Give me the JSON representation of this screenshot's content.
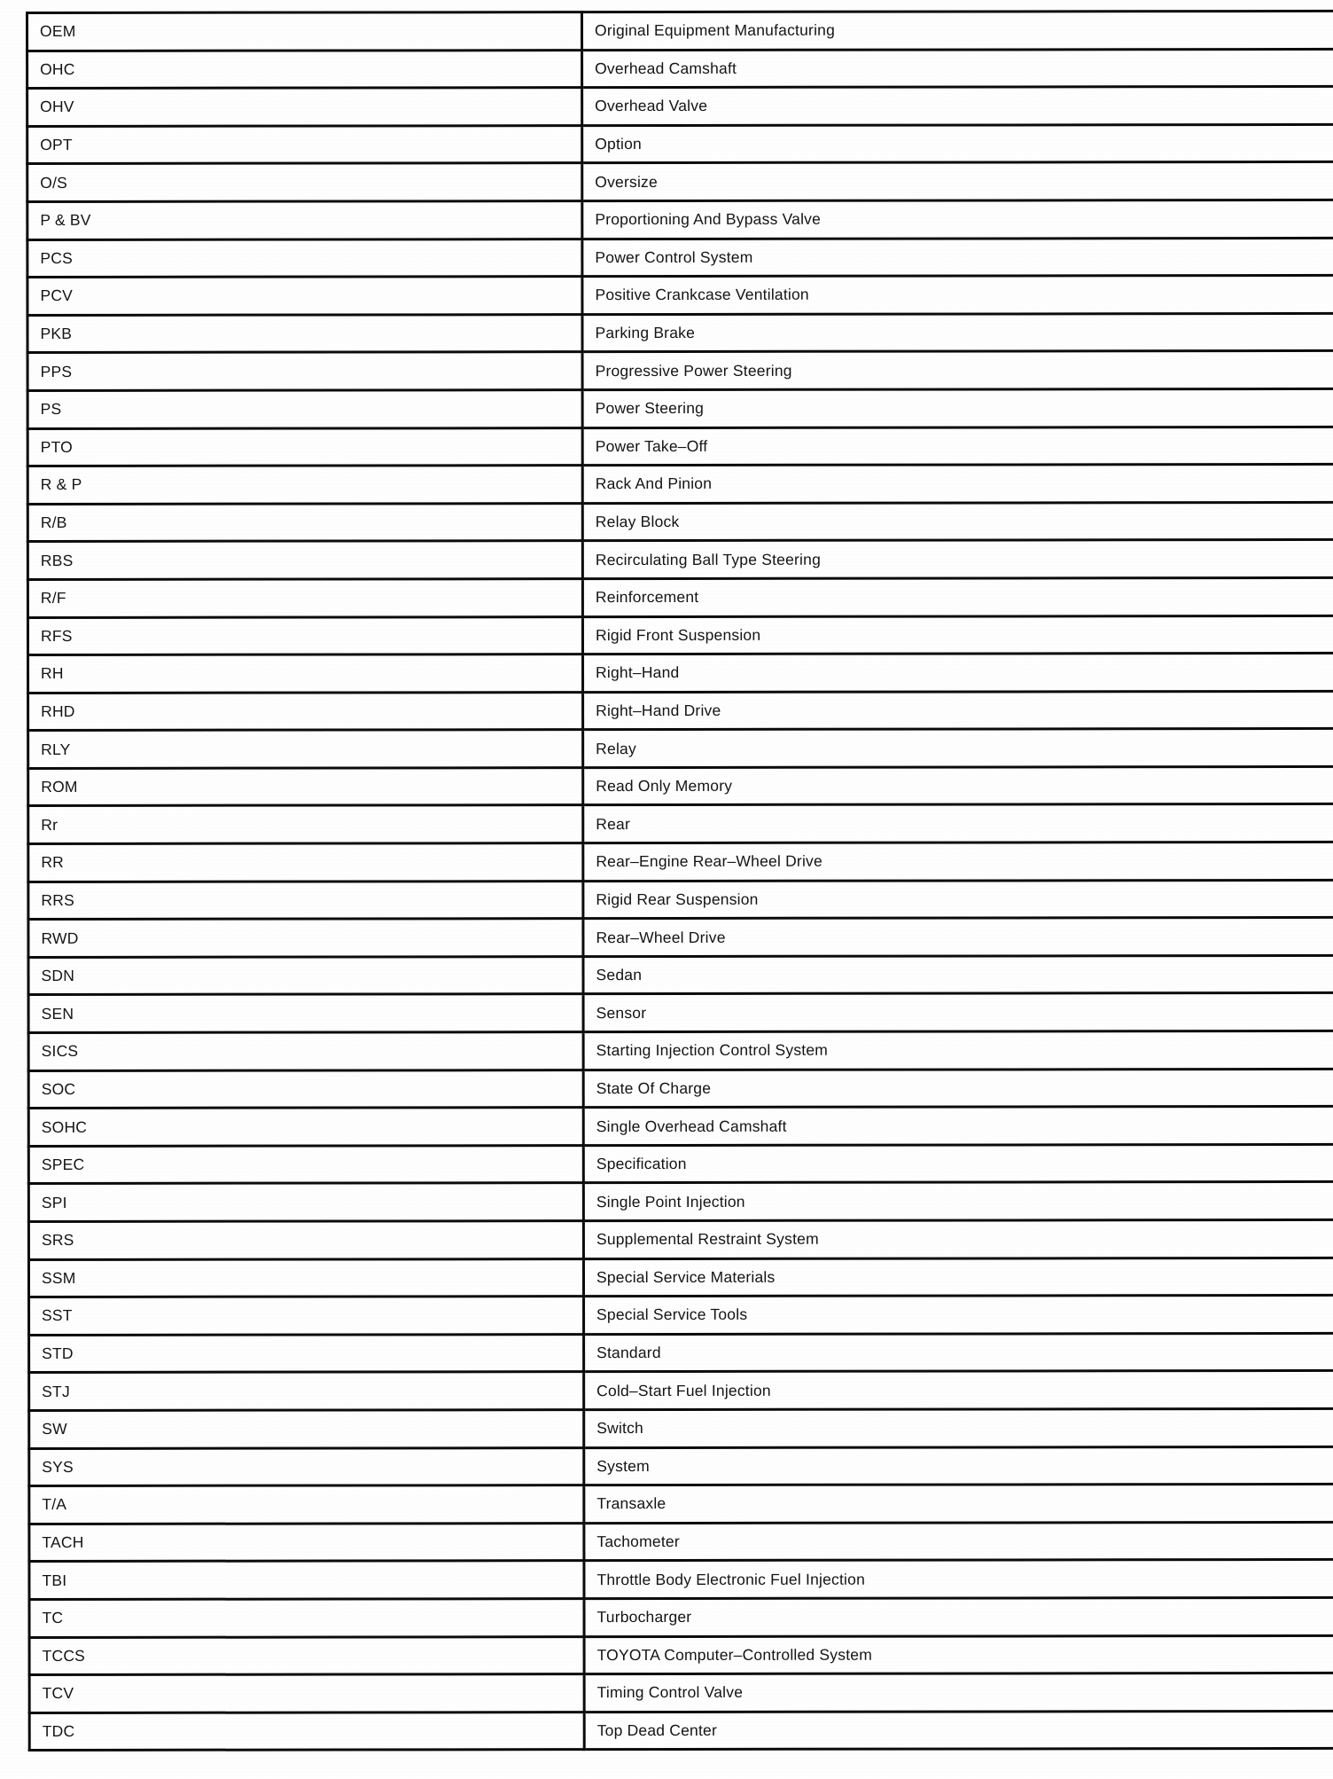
{
  "table": {
    "rows": [
      {
        "abbr": "OEM",
        "meaning": "Original Equipment Manufacturing"
      },
      {
        "abbr": "OHC",
        "meaning": "Overhead Camshaft"
      },
      {
        "abbr": "OHV",
        "meaning": "Overhead Valve"
      },
      {
        "abbr": "OPT",
        "meaning": "Option"
      },
      {
        "abbr": "O/S",
        "meaning": "Oversize"
      },
      {
        "abbr": "P & BV",
        "meaning": "Proportioning And Bypass Valve"
      },
      {
        "abbr": "PCS",
        "meaning": "Power Control System"
      },
      {
        "abbr": "PCV",
        "meaning": "Positive Crankcase Ventilation"
      },
      {
        "abbr": "PKB",
        "meaning": "Parking Brake"
      },
      {
        "abbr": "PPS",
        "meaning": "Progressive Power Steering"
      },
      {
        "abbr": "PS",
        "meaning": "Power Steering"
      },
      {
        "abbr": "PTO",
        "meaning": "Power Take–Off"
      },
      {
        "abbr": "R & P",
        "meaning": "Rack And Pinion"
      },
      {
        "abbr": "R/B",
        "meaning": "Relay Block"
      },
      {
        "abbr": "RBS",
        "meaning": "Recirculating Ball Type Steering"
      },
      {
        "abbr": "R/F",
        "meaning": "Reinforcement"
      },
      {
        "abbr": "RFS",
        "meaning": "Rigid Front Suspension"
      },
      {
        "abbr": "RH",
        "meaning": "Right–Hand"
      },
      {
        "abbr": "RHD",
        "meaning": "Right–Hand Drive"
      },
      {
        "abbr": "RLY",
        "meaning": "Relay"
      },
      {
        "abbr": "ROM",
        "meaning": "Read Only Memory"
      },
      {
        "abbr": "Rr",
        "meaning": "Rear"
      },
      {
        "abbr": "RR",
        "meaning": "Rear–Engine Rear–Wheel Drive"
      },
      {
        "abbr": "RRS",
        "meaning": "Rigid Rear Suspension"
      },
      {
        "abbr": "RWD",
        "meaning": "Rear–Wheel Drive"
      },
      {
        "abbr": "SDN",
        "meaning": "Sedan"
      },
      {
        "abbr": "SEN",
        "meaning": "Sensor"
      },
      {
        "abbr": "SICS",
        "meaning": "Starting Injection Control System"
      },
      {
        "abbr": "SOC",
        "meaning": "State Of Charge"
      },
      {
        "abbr": "SOHC",
        "meaning": "Single Overhead Camshaft"
      },
      {
        "abbr": "SPEC",
        "meaning": "Specification"
      },
      {
        "abbr": "SPI",
        "meaning": "Single Point Injection"
      },
      {
        "abbr": "SRS",
        "meaning": "Supplemental Restraint System"
      },
      {
        "abbr": "SSM",
        "meaning": "Special Service Materials"
      },
      {
        "abbr": "SST",
        "meaning": "Special Service Tools"
      },
      {
        "abbr": "STD",
        "meaning": "Standard"
      },
      {
        "abbr": "STJ",
        "meaning": "Cold–Start Fuel Injection"
      },
      {
        "abbr": "SW",
        "meaning": "Switch"
      },
      {
        "abbr": "SYS",
        "meaning": "System"
      },
      {
        "abbr": "T/A",
        "meaning": "Transaxle"
      },
      {
        "abbr": "TACH",
        "meaning": "Tachometer"
      },
      {
        "abbr": "TBI",
        "meaning": "Throttle Body Electronic Fuel Injection"
      },
      {
        "abbr": "TC",
        "meaning": "Turbocharger"
      },
      {
        "abbr": "TCCS",
        "meaning": "TOYOTA Computer–Controlled System"
      },
      {
        "abbr": "TCV",
        "meaning": "Timing Control Valve"
      },
      {
        "abbr": "TDC",
        "meaning": "Top Dead Center"
      }
    ]
  }
}
